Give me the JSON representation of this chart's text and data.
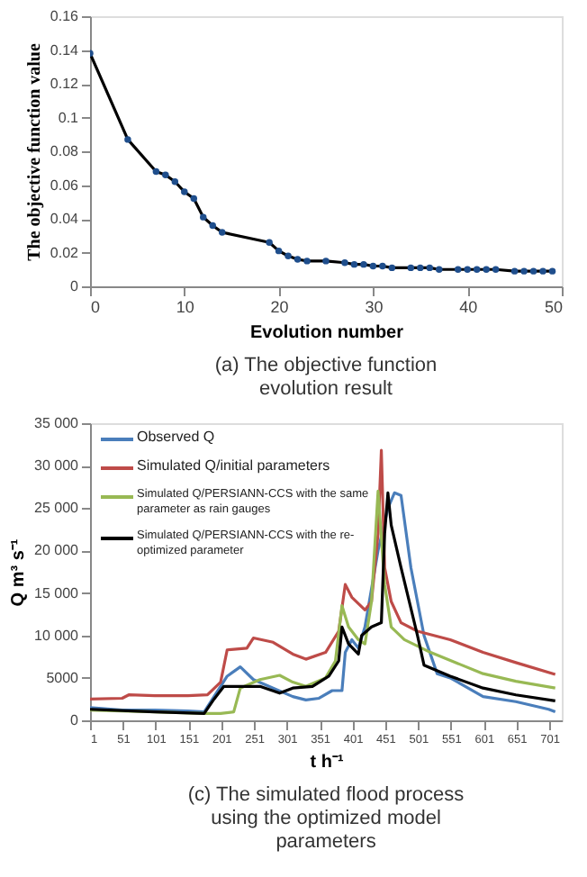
{
  "chart_data": [
    {
      "type": "line",
      "title": "(a) The objective function evolution result",
      "xlabel": "Evolution number",
      "ylabel": "The objective function value",
      "marker": "circle",
      "grid": false,
      "legend": false,
      "xlim": [
        0,
        50
      ],
      "xticks": [
        0,
        10,
        20,
        30,
        40,
        50
      ],
      "ylim": [
        0,
        0.16
      ],
      "yticks": [
        0,
        0.02,
        0.04,
        0.06,
        0.08,
        0.1,
        0.12,
        0.14,
        0.16
      ],
      "series": [
        {
          "color": "#000000",
          "x": [
            0,
            4,
            7,
            8,
            9,
            10,
            11,
            12,
            13,
            14,
            19,
            20,
            21,
            22,
            23,
            25,
            27,
            28,
            29,
            30,
            31,
            32,
            34,
            35,
            36,
            37,
            39,
            40,
            41,
            42,
            43,
            45,
            46,
            47,
            48,
            49
          ],
          "values": [
            0.138,
            0.087,
            0.068,
            0.066,
            0.062,
            0.056,
            0.052,
            0.041,
            0.036,
            0.032,
            0.026,
            0.021,
            0.018,
            0.016,
            0.015,
            0.015,
            0.014,
            0.013,
            0.013,
            0.012,
            0.012,
            0.011,
            0.011,
            0.011,
            0.011,
            0.01,
            0.01,
            0.01,
            0.01,
            0.01,
            0.01,
            0.009,
            0.009,
            0.009,
            0.009,
            0.009
          ]
        }
      ]
    },
    {
      "type": "line",
      "title": "(c) The simulated flood process using the optimized model parameters",
      "xlabel": "t h⁻¹",
      "ylabel": "Q m³ s⁻¹",
      "grid": false,
      "legend": "top left",
      "marker": "none",
      "xlim": [
        1,
        720
      ],
      "xticks": [
        1,
        51,
        101,
        151,
        201,
        251,
        301,
        351,
        401,
        451,
        501,
        551,
        601,
        651,
        701
      ],
      "ylim": [
        0,
        35000
      ],
      "yticks": [
        0,
        5000,
        {
          "value": 10000,
          "label": "10 000"
        },
        {
          "value": 15000,
          "label": "15 000"
        },
        {
          "value": 20000,
          "label": "20 000"
        },
        {
          "value": 25000,
          "label": "25 000"
        },
        {
          "value": 30000,
          "label": "30 000"
        },
        {
          "value": 35000,
          "label": "35 000"
        }
      ],
      "series": [
        {
          "name": "Observed Q",
          "color": "#4a7ebb",
          "x": [
            1,
            50,
            100,
            150,
            175,
            200,
            210,
            230,
            250,
            280,
            310,
            330,
            350,
            370,
            385,
            390,
            400,
            410,
            420,
            440,
            455,
            465,
            475,
            490,
            510,
            530,
            550,
            600,
            650,
            700,
            710
          ],
          "values": [
            1500,
            1200,
            1200,
            1100,
            1000,
            4000,
            5200,
            6300,
            4800,
            3800,
            2800,
            2400,
            2600,
            3500,
            3500,
            8000,
            9500,
            8500,
            11000,
            20000,
            25000,
            26800,
            26500,
            18000,
            10000,
            5500,
            5000,
            2800,
            2200,
            1300,
            1000
          ]
        },
        {
          "name": "Simulated Q/initial parameters",
          "color": "#be4b48",
          "x": [
            1,
            50,
            60,
            100,
            150,
            180,
            200,
            210,
            240,
            250,
            280,
            310,
            330,
            360,
            380,
            390,
            400,
            420,
            430,
            440,
            445,
            450,
            460,
            475,
            500,
            550,
            600,
            650,
            710
          ],
          "values": [
            2500,
            2600,
            3000,
            2900,
            2900,
            3000,
            4500,
            8300,
            8500,
            9700,
            9200,
            7800,
            7200,
            8000,
            10500,
            16000,
            14500,
            13000,
            14000,
            22000,
            31800,
            18000,
            14000,
            11500,
            10500,
            9500,
            8000,
            6800,
            5400
          ]
        },
        {
          "name": "Simulated Q/PERSIANN-CCS with the same parameter as rain gauges",
          "color": "#98b954",
          "x": [
            1,
            100,
            175,
            200,
            220,
            230,
            260,
            290,
            310,
            330,
            360,
            375,
            385,
            395,
            410,
            420,
            430,
            440,
            450,
            460,
            480,
            520,
            600,
            650,
            710
          ],
          "values": [
            1200,
            1000,
            800,
            800,
            1000,
            3800,
            4800,
            5300,
            4500,
            4000,
            5000,
            7000,
            13500,
            11000,
            9500,
            9000,
            14000,
            27000,
            16000,
            11000,
            9500,
            8000,
            5500,
            4600,
            3800
          ]
        },
        {
          "name": "Simulated Q/PERSIANN-CCS with the re-optimized parameter",
          "color": "#000000",
          "x": [
            1,
            100,
            175,
            190,
            205,
            230,
            260,
            290,
            310,
            340,
            365,
            380,
            385,
            395,
            410,
            415,
            430,
            445,
            450,
            455,
            460,
            475,
            500,
            510,
            550,
            600,
            650,
            710
          ],
          "values": [
            1300,
            1000,
            800,
            2500,
            4000,
            4000,
            4000,
            3200,
            3800,
            4000,
            5200,
            7000,
            11000,
            9000,
            7800,
            10000,
            11000,
            11500,
            22000,
            26800,
            23000,
            18000,
            10000,
            6500,
            5200,
            3800,
            3000,
            2300
          ]
        }
      ]
    }
  ]
}
